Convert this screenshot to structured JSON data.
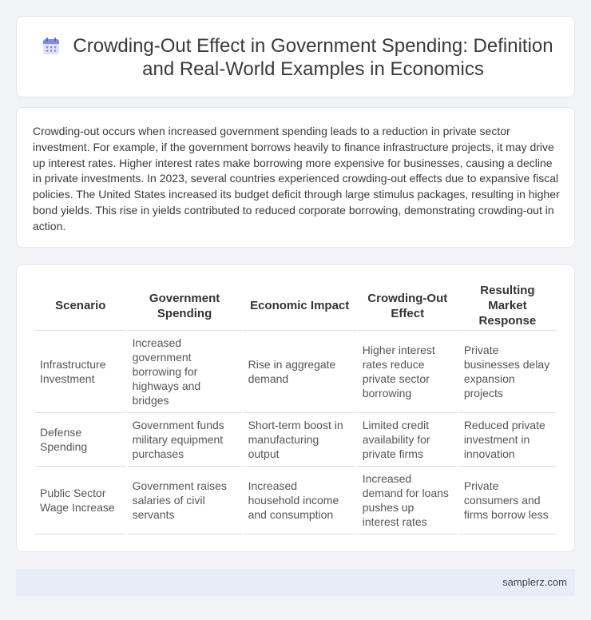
{
  "header": {
    "icon": "calendar-icon",
    "title": "Crowding-Out Effect in Government Spending: Definition and Real-World Examples in Economics"
  },
  "intro": {
    "text": "Crowding-out occurs when increased government spending leads to a reduction in private sector investment. For example, if the government borrows heavily to finance infrastructure projects, it may drive up interest rates. Higher interest rates make borrowing more expensive for businesses, causing a decline in private investments. In 2023, several countries experienced crowding-out effects due to expansive fiscal policies. The United States increased its budget deficit through large stimulus packages, resulting in higher bond yields. This rise in yields contributed to reduced corporate borrowing, demonstrating crowding-out in action."
  },
  "table": {
    "headers": [
      "Scenario",
      "Government Spending",
      "Economic Impact",
      "Crowding-Out Effect",
      "Resulting Market Response"
    ],
    "rows": [
      [
        "Infrastructure Investment",
        "Increased government borrowing for highways and bridges",
        "Rise in aggregate demand",
        "Higher interest rates reduce private sector borrowing",
        "Private businesses delay expansion projects"
      ],
      [
        "Defense Spending",
        "Government funds military equipment purchases",
        "Short-term boost in manufacturing output",
        "Limited credit availability for private firms",
        "Reduced private investment in innovation"
      ],
      [
        "Public Sector Wage Increase",
        "Government raises salaries of civil servants",
        "Increased household income and consumption",
        "Increased demand for loans pushes up interest rates",
        "Private consumers and firms borrow less"
      ]
    ]
  },
  "footer": {
    "text": "samplerz.com"
  },
  "colors": {
    "accent": "#6f7fdc",
    "background": "#f1f3f6",
    "footer_bg": "#e6edf7"
  }
}
